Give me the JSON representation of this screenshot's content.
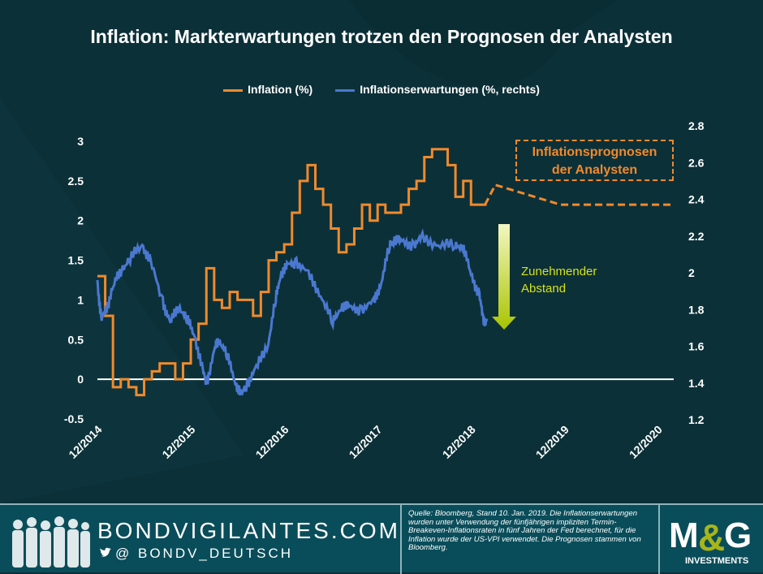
{
  "title": "Inflation: Markterwartungen trotzen den Prognosen der Analysten",
  "colors": {
    "inflation": "#f08a2c",
    "expectations": "#4a78d0",
    "arrow": "#c8d400"
  },
  "annotations": {
    "forecast_line1": "Inflationsprognosen",
    "forecast_line2": "der Analysten",
    "gap_line1": "Zunehmender",
    "gap_line2": "Abstand"
  },
  "footer": {
    "brand": "BONDVIGILANTES.COM",
    "handle": "@ BONDV_DEUTSCH",
    "source": "Quelle: Bloomberg, Stand 10. Jan. 2019. Die Inflationserwartungen wurden unter Verwendung der fünfjährigen impliziten Termin-Breakeven-Inflationsraten in fünf Jahren der Fed berechnet, für die Inflation wurde der US-VPI verwendet. Die Prognosen stammen von Bloomberg.",
    "logo": "M&G",
    "logo_sub": "INVESTMENTS"
  },
  "chart_data": {
    "type": "line",
    "title": "Inflation: Markterwartungen trotzen den Prognosen der Analysten",
    "legend": [
      "Inflation (%)",
      "Inflationserwartungen (%, rechts)"
    ],
    "legend_position": "top",
    "x_ticks": [
      {
        "label": "12/2014",
        "t": 2014.92
      },
      {
        "label": "12/2015",
        "t": 2015.92
      },
      {
        "label": "12/2016",
        "t": 2016.92
      },
      {
        "label": "12/2017",
        "t": 2017.92
      },
      {
        "label": "12/2018",
        "t": 2018.92
      },
      {
        "label": "12/2019",
        "t": 2019.92
      },
      {
        "label": "12/2020",
        "t": 2020.92
      }
    ],
    "xlim": [
      2014.83,
      2021.0
    ],
    "y_left": {
      "ticks": [
        "-0.5",
        "0",
        "0.5",
        "1",
        "1.5",
        "2",
        "2.5",
        "3"
      ],
      "lim": [
        -0.5,
        3
      ]
    },
    "y_right": {
      "ticks": [
        "1.2",
        "1.4",
        "1.6",
        "1.8",
        "2",
        "2.2",
        "2.4",
        "2.6",
        "2.8"
      ],
      "lim": [
        1.2,
        2.8
      ]
    },
    "series": [
      {
        "name": "Inflation (%)",
        "axis": "left",
        "step": true,
        "start": 2014.83,
        "interval_months": 1,
        "values": [
          1.3,
          0.8,
          -0.1,
          0.0,
          -0.1,
          -0.2,
          0.0,
          0.1,
          0.2,
          0.2,
          0.0,
          0.2,
          0.5,
          0.7,
          1.4,
          1.0,
          0.9,
          1.1,
          1.0,
          1.0,
          0.8,
          1.1,
          1.5,
          1.6,
          1.7,
          2.1,
          2.5,
          2.7,
          2.4,
          2.2,
          1.9,
          1.6,
          1.7,
          1.9,
          2.2,
          2.0,
          2.2,
          2.1,
          2.1,
          2.2,
          2.4,
          2.5,
          2.8,
          2.9,
          2.9,
          2.7,
          2.3,
          2.5,
          2.2,
          2.2
        ]
      },
      {
        "name": "Inflationserwartungen (%, rechts)",
        "axis": "right",
        "t": [
          2014.83,
          2014.87,
          2014.92,
          2015.0,
          2015.09,
          2015.18,
          2015.31,
          2015.4,
          2015.53,
          2015.61,
          2015.7,
          2015.79,
          2015.87,
          2015.96,
          2016.0,
          2016.09,
          2016.13,
          2016.22,
          2016.31,
          2016.37,
          2016.44,
          2016.53,
          2016.66,
          2016.74,
          2016.79,
          2016.87,
          2016.96,
          2017.09,
          2017.22,
          2017.35,
          2017.44,
          2017.53,
          2017.66,
          2017.79,
          2017.87,
          2017.96,
          2018.0,
          2018.09,
          2018.22,
          2018.31,
          2018.48,
          2018.66,
          2018.74,
          2018.83,
          2018.92,
          2018.96,
          2019.0
        ],
        "values": [
          1.96,
          1.74,
          1.8,
          1.92,
          2.03,
          2.07,
          2.16,
          2.05,
          1.85,
          1.72,
          1.83,
          1.74,
          1.67,
          1.45,
          1.41,
          1.58,
          1.65,
          1.54,
          1.41,
          1.32,
          1.41,
          1.47,
          1.63,
          1.85,
          2.0,
          2.03,
          2.07,
          1.98,
          1.89,
          1.72,
          1.83,
          1.8,
          1.81,
          1.83,
          1.96,
          2.14,
          2.19,
          2.16,
          2.16,
          2.18,
          2.16,
          2.14,
          2.16,
          1.98,
          1.89,
          1.73,
          1.75
        ]
      },
      {
        "name": "Inflationsprognosen der Analysten",
        "axis": "left",
        "dashed": true,
        "t": [
          2018.98,
          2019.09,
          2019.79,
          2021.0
        ],
        "values": [
          2.2,
          2.45,
          2.2,
          2.2
        ]
      }
    ]
  }
}
